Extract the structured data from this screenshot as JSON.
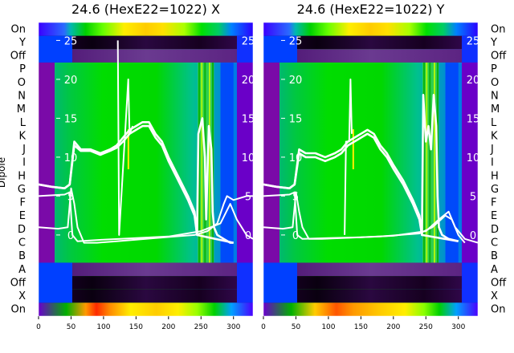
{
  "chart_data": [
    {
      "type": "heatmap",
      "title": "24.6 (HexE22=1022) X",
      "ylabel": "Dipole",
      "row_labels": [
        "On",
        "X",
        "Off",
        "A",
        "B",
        "C",
        "D",
        "E",
        "F",
        "G",
        "H",
        "I",
        "J",
        "K",
        "L",
        "M",
        "N",
        "O",
        "P",
        "Off",
        "Y",
        "On"
      ],
      "xlim": [
        0,
        330
      ],
      "x_ticks": [
        0,
        50,
        100,
        150,
        200,
        250,
        300
      ],
      "inner_ylim": [
        -3,
        27
      ],
      "inner_y_ticks": [
        0,
        5,
        10,
        15,
        20,
        25
      ],
      "colormap": "nipy_spectral",
      "series": [
        {
          "values": [
            [
              0,
              6.5
            ],
            [
              20,
              6.2
            ],
            [
              40,
              6.0
            ],
            [
              48,
              6.5
            ],
            [
              55,
              12
            ],
            [
              65,
              11
            ],
            [
              80,
              11
            ],
            [
              95,
              10.5
            ],
            [
              110,
              11
            ],
            [
              120,
              11.5
            ],
            [
              130,
              12.5
            ],
            [
              140,
              13.5
            ],
            [
              150,
              14
            ],
            [
              160,
              14.5
            ],
            [
              170,
              14.5
            ],
            [
              180,
              13
            ],
            [
              190,
              12
            ],
            [
              200,
              10
            ],
            [
              215,
              7.5
            ],
            [
              230,
              5
            ],
            [
              240,
              3
            ],
            [
              244,
              0
            ],
            [
              246,
              13
            ],
            [
              252,
              15
            ],
            [
              256,
              10
            ],
            [
              258,
              2
            ],
            [
              262,
              14
            ],
            [
              266,
              11
            ],
            [
              268,
              3
            ],
            [
              270,
              1
            ],
            [
              275,
              0
            ],
            [
              285,
              -0.5
            ],
            [
              295,
              -1
            ],
            [
              300,
              -1
            ]
          ]
        },
        {
          "values": [
            [
              0,
              6.5
            ],
            [
              20,
              6.2
            ],
            [
              40,
              6.0
            ],
            [
              48,
              6.5
            ],
            [
              55,
              11.5
            ],
            [
              65,
              10.8
            ],
            [
              80,
              10.8
            ],
            [
              95,
              10.3
            ],
            [
              110,
              10.8
            ],
            [
              120,
              11.2
            ],
            [
              130,
              12
            ],
            [
              140,
              13
            ],
            [
              150,
              13.5
            ],
            [
              160,
              14
            ],
            [
              170,
              14
            ],
            [
              180,
              12.5
            ],
            [
              190,
              11.5
            ],
            [
              200,
              9.5
            ],
            [
              215,
              7
            ],
            [
              230,
              4.5
            ],
            [
              240,
              2.5
            ],
            [
              244,
              0
            ],
            [
              300,
              -1
            ]
          ]
        },
        {
          "values": [
            [
              0,
              1
            ],
            [
              30,
              0.8
            ],
            [
              45,
              1
            ],
            [
              50,
              6
            ],
            [
              55,
              4
            ],
            [
              60,
              1
            ],
            [
              70,
              -1
            ],
            [
              90,
              -1
            ],
            [
              120,
              -0.8
            ],
            [
              150,
              -0.6
            ],
            [
              180,
              -0.4
            ],
            [
              210,
              -0.2
            ],
            [
              240,
              0
            ],
            [
              260,
              0.5
            ],
            [
              275,
              1.5
            ],
            [
              285,
              4
            ],
            [
              290,
              5
            ],
            [
              300,
              4.5
            ],
            [
              320,
              5
            ],
            [
              330,
              5
            ]
          ]
        },
        {
          "values": [
            [
              0,
              5
            ],
            [
              40,
              5.2
            ],
            [
              48,
              5.5
            ],
            [
              52,
              0
            ],
            [
              60,
              -0.8
            ],
            [
              100,
              -0.6
            ],
            [
              150,
              -0.4
            ],
            [
              200,
              -0.2
            ],
            [
              250,
              0.5
            ],
            [
              280,
              1.5
            ],
            [
              295,
              4
            ],
            [
              305,
              2
            ],
            [
              320,
              0
            ],
            [
              330,
              -0.5
            ]
          ]
        },
        {
          "values": [
            [
              122,
              25
            ],
            [
              124,
              0
            ],
            [
              138,
              20
            ],
            [
              140,
              13
            ],
            [
              145,
              14
            ]
          ]
        }
      ]
    },
    {
      "type": "heatmap",
      "title": "24.6 (HexE22=1022) Y",
      "row_labels": [
        "On",
        "X",
        "Off",
        "A",
        "B",
        "C",
        "D",
        "E",
        "F",
        "G",
        "H",
        "I",
        "J",
        "K",
        "L",
        "M",
        "N",
        "O",
        "P",
        "Off",
        "Y",
        "On"
      ],
      "xlim": [
        0,
        330
      ],
      "x_ticks": [
        0,
        50,
        100,
        150,
        200,
        250,
        300
      ],
      "inner_ylim": [
        -3,
        27
      ],
      "inner_y_ticks": [
        0,
        5,
        10,
        15,
        20,
        25
      ],
      "colormap": "nipy_spectral",
      "series": [
        {
          "values": [
            [
              0,
              6.5
            ],
            [
              20,
              6.2
            ],
            [
              40,
              6.0
            ],
            [
              48,
              6.5
            ],
            [
              55,
              11
            ],
            [
              65,
              10.5
            ],
            [
              80,
              10.5
            ],
            [
              95,
              10
            ],
            [
              110,
              10.5
            ],
            [
              120,
              11
            ],
            [
              130,
              12
            ],
            [
              140,
              12.5
            ],
            [
              150,
              13
            ],
            [
              160,
              13.5
            ],
            [
              170,
              13
            ],
            [
              180,
              11.5
            ],
            [
              190,
              10.5
            ],
            [
              200,
              9
            ],
            [
              215,
              7
            ],
            [
              230,
              4.5
            ],
            [
              240,
              2.5
            ],
            [
              244,
              0
            ],
            [
              246,
              18
            ],
            [
              250,
              12
            ],
            [
              254,
              14
            ],
            [
              258,
              11
            ],
            [
              262,
              18
            ],
            [
              266,
              14
            ],
            [
              268,
              5
            ],
            [
              270,
              1
            ],
            [
              275,
              0
            ],
            [
              285,
              -0.5
            ],
            [
              300,
              -0.8
            ]
          ]
        },
        {
          "values": [
            [
              0,
              6.5
            ],
            [
              20,
              6.2
            ],
            [
              40,
              6.0
            ],
            [
              48,
              6.5
            ],
            [
              55,
              10.5
            ],
            [
              65,
              10
            ],
            [
              80,
              10
            ],
            [
              95,
              9.5
            ],
            [
              110,
              10
            ],
            [
              120,
              10.5
            ],
            [
              130,
              11.5
            ],
            [
              140,
              12
            ],
            [
              150,
              12.5
            ],
            [
              160,
              13
            ],
            [
              170,
              12.5
            ],
            [
              180,
              11
            ],
            [
              190,
              10
            ],
            [
              200,
              8.5
            ],
            [
              215,
              6.5
            ],
            [
              230,
              4
            ],
            [
              240,
              2
            ],
            [
              244,
              0
            ],
            [
              300,
              -0.8
            ]
          ]
        },
        {
          "values": [
            [
              0,
              1
            ],
            [
              30,
              0.8
            ],
            [
              45,
              1
            ],
            [
              50,
              5.5
            ],
            [
              55,
              3
            ],
            [
              60,
              1
            ],
            [
              70,
              -0.5
            ],
            [
              90,
              -0.5
            ],
            [
              120,
              -0.4
            ],
            [
              150,
              -0.3
            ],
            [
              180,
              -0.2
            ],
            [
              210,
              0
            ],
            [
              240,
              0.2
            ],
            [
              260,
              1
            ],
            [
              280,
              2.5
            ],
            [
              290,
              2
            ],
            [
              300,
              0
            ],
            [
              310,
              -1
            ]
          ]
        },
        {
          "values": [
            [
              0,
              5
            ],
            [
              40,
              5.2
            ],
            [
              48,
              5.5
            ],
            [
              52,
              0
            ],
            [
              60,
              -0.5
            ],
            [
              100,
              -0.4
            ],
            [
              150,
              -0.3
            ],
            [
              200,
              -0.1
            ],
            [
              250,
              0.5
            ],
            [
              270,
              2
            ],
            [
              285,
              3
            ],
            [
              295,
              1
            ],
            [
              310,
              -0.5
            ],
            [
              330,
              -1
            ]
          ]
        },
        {
          "values": [
            [
              125,
              0
            ],
            [
              127,
              12
            ],
            [
              132,
              12
            ],
            [
              134,
              20
            ],
            [
              136,
              13
            ]
          ]
        }
      ]
    }
  ]
}
